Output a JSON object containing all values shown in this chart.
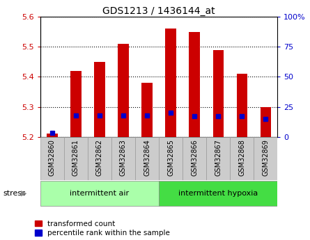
{
  "title": "GDS1213 / 1436144_at",
  "samples": [
    "GSM32860",
    "GSM32861",
    "GSM32862",
    "GSM32863",
    "GSM32864",
    "GSM32865",
    "GSM32866",
    "GSM32867",
    "GSM32868",
    "GSM32869"
  ],
  "transformed_count": [
    5.21,
    5.42,
    5.45,
    5.51,
    5.38,
    5.56,
    5.55,
    5.49,
    5.41,
    5.3
  ],
  "percentile_rank": [
    3,
    18,
    18,
    18,
    18,
    20,
    17,
    17,
    17,
    15
  ],
  "bar_base": 5.2,
  "ylim": [
    5.2,
    5.6
  ],
  "right_ylim": [
    0,
    100
  ],
  "right_yticks": [
    0,
    25,
    50,
    75,
    100
  ],
  "right_yticklabels": [
    "0",
    "25",
    "50",
    "75",
    "100%"
  ],
  "bar_color": "#cc0000",
  "percentile_color": "#0000cc",
  "background_plot": "#ffffff",
  "bar_width": 0.45,
  "group1_label": "intermittent air",
  "group2_label": "intermittent hypoxia",
  "stress_label": "stress",
  "legend1_label": "transformed count",
  "legend2_label": "percentile rank within the sample",
  "yticks": [
    5.2,
    5.3,
    5.4,
    5.5,
    5.6
  ],
  "group_bg1": "#aaffaa",
  "group_bg2": "#44dd44",
  "tick_area_bg": "#cccccc",
  "outer_border": "#888888"
}
